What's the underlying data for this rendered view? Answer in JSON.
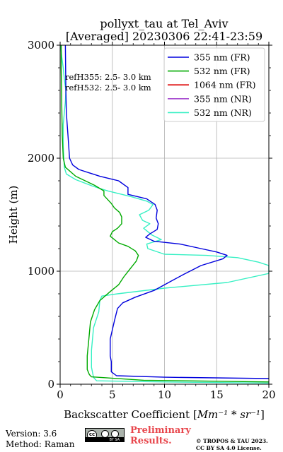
{
  "chart_data": {
    "type": "line",
    "title_line1": "pollyxt_tau at Tel_Aviv",
    "title_line2": "[Averaged] 20230306 22:41-23:59",
    "xlabel_text": "Backscatter Coefficient [",
    "xlabel_unit": "Mm⁻¹ * sr⁻¹",
    "xlabel_close": "]",
    "ylabel": "Height (m)",
    "xlim": [
      0,
      20
    ],
    "ylim": [
      0,
      3000
    ],
    "xticks": [
      0,
      5,
      10,
      15,
      20
    ],
    "yticks": [
      0,
      1000,
      2000,
      3000
    ],
    "grid": true,
    "legend_position": "top-right",
    "annotations": [
      "refH355:  2.5- 3.0 km",
      "refH532:  2.5- 3.0 km"
    ],
    "series": [
      {
        "name": "355 nm (FR)",
        "color": "#0000dd",
        "points": [
          [
            20,
            50
          ],
          [
            10,
            62
          ],
          [
            5.4,
            75
          ],
          [
            4.9,
            110
          ],
          [
            4.9,
            200
          ],
          [
            4.8,
            250
          ],
          [
            4.8,
            400
          ],
          [
            5.2,
            560
          ],
          [
            5.5,
            670
          ],
          [
            6,
            720
          ],
          [
            7.2,
            770
          ],
          [
            9,
            830
          ],
          [
            10.8,
            920
          ],
          [
            11.8,
            970
          ],
          [
            13.5,
            1050
          ],
          [
            15.6,
            1110
          ],
          [
            16,
            1140
          ],
          [
            15,
            1170
          ],
          [
            13.5,
            1200
          ],
          [
            11.5,
            1240
          ],
          [
            9,
            1265
          ],
          [
            8.2,
            1300
          ],
          [
            8.6,
            1330
          ],
          [
            9.3,
            1370
          ],
          [
            9.4,
            1420
          ],
          [
            9.2,
            1470
          ],
          [
            9.3,
            1540
          ],
          [
            9.1,
            1590
          ],
          [
            8.3,
            1640
          ],
          [
            6.5,
            1680
          ],
          [
            6.5,
            1740
          ],
          [
            5.6,
            1800
          ],
          [
            3.8,
            1840
          ],
          [
            1.8,
            1900
          ],
          [
            1.2,
            1940
          ],
          [
            0.9,
            2000
          ],
          [
            0.75,
            2200
          ],
          [
            0.6,
            2400
          ],
          [
            0.55,
            2600
          ],
          [
            0.5,
            3000
          ]
        ]
      },
      {
        "name": "532 nm (FR)",
        "color": "#00aa00",
        "points": [
          [
            20,
            20
          ],
          [
            8,
            35
          ],
          [
            3,
            65
          ],
          [
            2.8,
            85
          ],
          [
            2.6,
            130
          ],
          [
            2.6,
            250
          ],
          [
            2.75,
            400
          ],
          [
            2.9,
            550
          ],
          [
            3.3,
            660
          ],
          [
            3.8,
            740
          ],
          [
            4.8,
            820
          ],
          [
            5.6,
            880
          ],
          [
            6.1,
            950
          ],
          [
            6.7,
            1020
          ],
          [
            7.3,
            1090
          ],
          [
            7.5,
            1140
          ],
          [
            7.2,
            1180
          ],
          [
            6.5,
            1220
          ],
          [
            5.6,
            1250
          ],
          [
            4.8,
            1310
          ],
          [
            5,
            1350
          ],
          [
            5.5,
            1380
          ],
          [
            5.9,
            1420
          ],
          [
            5.9,
            1480
          ],
          [
            5.7,
            1520
          ],
          [
            5.2,
            1560
          ],
          [
            4.9,
            1600
          ],
          [
            4.6,
            1630
          ],
          [
            4.2,
            1670
          ],
          [
            4.2,
            1710
          ],
          [
            3.3,
            1760
          ],
          [
            1.5,
            1840
          ],
          [
            0.5,
            1920
          ],
          [
            0.3,
            2000
          ],
          [
            0.2,
            2200
          ],
          [
            0.15,
            2500
          ],
          [
            0.1,
            2800
          ],
          [
            0.1,
            3000
          ]
        ]
      },
      {
        "name": "1064 nm (FR)",
        "color": "#dd0000",
        "points": []
      },
      {
        "name": "355 nm (NR)",
        "color": "#a64ad0",
        "points": []
      },
      {
        "name": "532 nm (NR)",
        "color": "#38f0c4",
        "points": [
          [
            20,
            10
          ],
          [
            10,
            20
          ],
          [
            3.5,
            30
          ],
          [
            3.2,
            60
          ],
          [
            3,
            150
          ],
          [
            3,
            300
          ],
          [
            3.2,
            500
          ],
          [
            3.7,
            640
          ],
          [
            3.8,
            740
          ],
          [
            4,
            780
          ],
          [
            5.5,
            800
          ],
          [
            10,
            850
          ],
          [
            16,
            900
          ],
          [
            20,
            980
          ],
          [
            20,
            1050
          ],
          [
            19,
            1080
          ],
          [
            17,
            1120
          ],
          [
            14,
            1140
          ],
          [
            10,
            1150
          ],
          [
            8.4,
            1200
          ],
          [
            8.3,
            1240
          ],
          [
            9.7,
            1280
          ],
          [
            8.8,
            1320
          ],
          [
            8,
            1380
          ],
          [
            8.6,
            1420
          ],
          [
            7.9,
            1450
          ],
          [
            7.6,
            1500
          ],
          [
            8.5,
            1540
          ],
          [
            8.9,
            1590
          ],
          [
            8.3,
            1620
          ],
          [
            6.8,
            1660
          ],
          [
            4.6,
            1710
          ],
          [
            3.2,
            1750
          ],
          [
            1.5,
            1810
          ],
          [
            0.6,
            1860
          ],
          [
            0.4,
            1920
          ],
          [
            0.3,
            2100
          ],
          [
            0.3,
            2300
          ],
          [
            0.5,
            2500
          ],
          [
            0.55,
            2600
          ],
          [
            0.4,
            2700
          ],
          [
            0.3,
            2800
          ],
          [
            0.15,
            2900
          ],
          [
            0.05,
            3000
          ]
        ]
      }
    ]
  },
  "footer": {
    "version": "Version: 3.6",
    "method": "Method: Raman",
    "prelim_line1": "Preliminary",
    "prelim_line2": "Results.",
    "copyright_line1": "© TROPOS & TAU 2023.",
    "copyright_line2": "CC BY SA 4.0 License.",
    "license_badge": "BY  SA",
    "cc_mark": "cc"
  }
}
